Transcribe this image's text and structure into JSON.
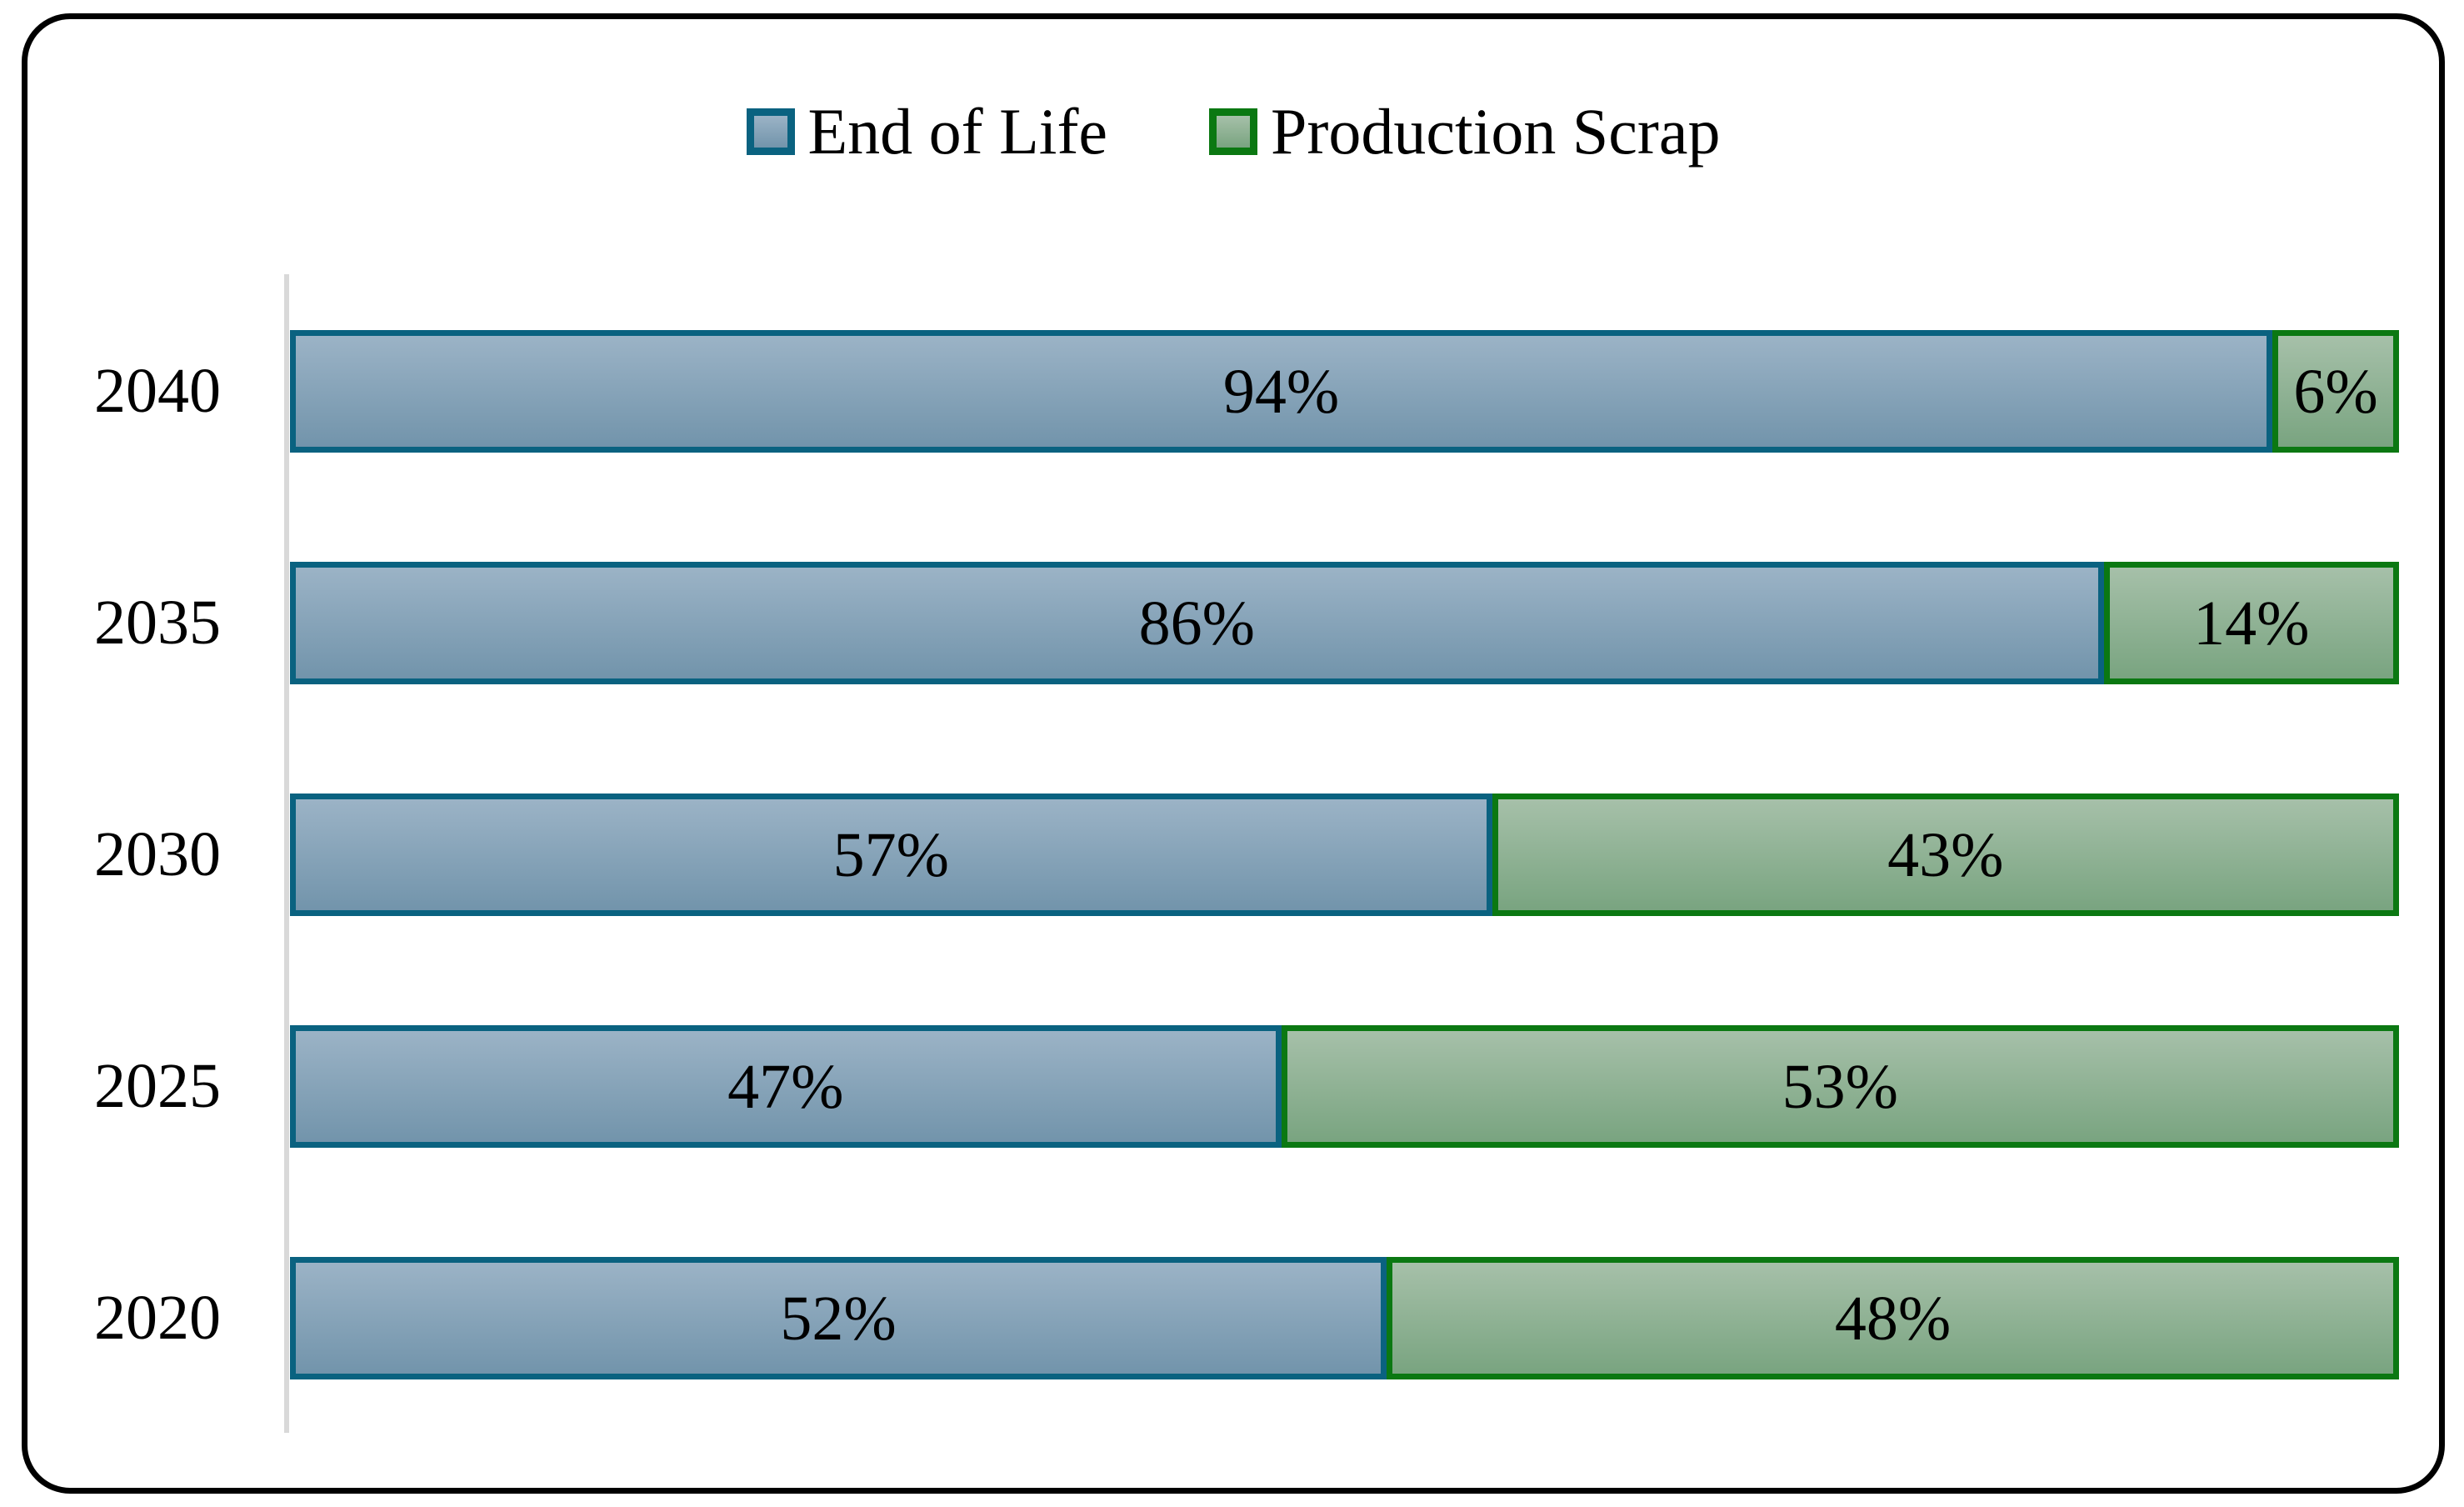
{
  "chart_data": {
    "type": "bar",
    "orientation": "horizontal",
    "stacked": true,
    "unit": "%",
    "categories": [
      "2040",
      "2035",
      "2030",
      "2025",
      "2020"
    ],
    "series": [
      {
        "name": "End of Life",
        "values": [
          94,
          86,
          57,
          47,
          52
        ]
      },
      {
        "name": "Production Scrap",
        "values": [
          6,
          14,
          43,
          53,
          48
        ]
      }
    ],
    "xlim": [
      0,
      100
    ],
    "legend_position": "top-center",
    "value_labels": "inside-center",
    "gridlines": false,
    "axis": "single-left-vertical-line"
  },
  "colors": {
    "end_of_life_border": "#0A6280",
    "end_of_life_fill_top": "#9BB3C6",
    "end_of_life_fill_bottom": "#7294AB",
    "production_scrap_border": "#0B7812",
    "production_scrap_fill_top": "#A6C0A9",
    "production_scrap_fill_bottom": "#79A480",
    "axis_line": "#D9D9D9",
    "frame_border": "#000000",
    "background": "#FFFFFF",
    "label_text": "#000000"
  }
}
